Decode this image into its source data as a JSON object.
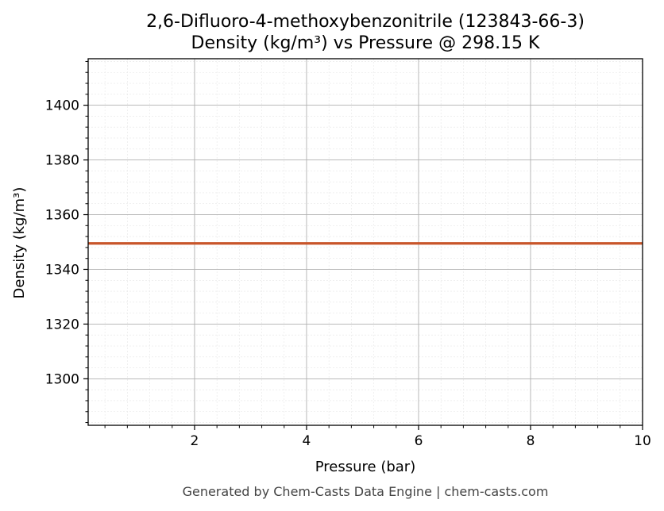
{
  "chart_data": {
    "type": "line",
    "title_line1": "2,6-Difluoro-4-methoxybenzonitrile (123843-66-3)",
    "title_line2": "Density (kg/m³) vs Pressure @ 298.15 K",
    "xlabel": "Pressure (bar)",
    "ylabel": "Density (kg/m³)",
    "xlim": [
      0.1,
      10
    ],
    "ylim": [
      1283,
      1417
    ],
    "x_ticks": [
      2,
      4,
      6,
      8,
      10
    ],
    "x_tick_labels": [
      "2",
      "4",
      "6",
      "8",
      "10"
    ],
    "y_ticks": [
      1300,
      1320,
      1340,
      1360,
      1380,
      1400
    ],
    "y_tick_labels": [
      "1300",
      "1320",
      "1340",
      "1360",
      "1380",
      "1400"
    ],
    "grid": true,
    "series": [
      {
        "color": "#c8552a",
        "x": [
          0.1,
          10
        ],
        "y": [
          1349.5,
          1349.5
        ]
      }
    ]
  },
  "footer": "Generated by Chem-Casts Data Engine | chem-casts.com"
}
